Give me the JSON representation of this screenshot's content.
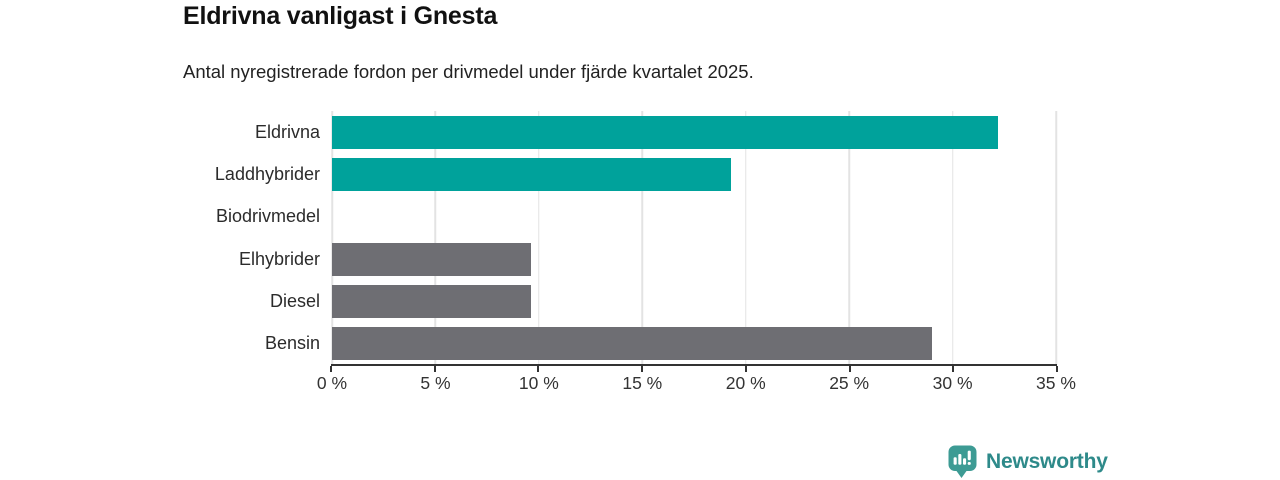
{
  "header": {
    "title": "Eldrivna vanligast i Gnesta",
    "subtitle": "Antal nyregistrerade fordon per drivmedel under fjärde kvartalet 2025."
  },
  "chart_data": {
    "type": "bar",
    "orientation": "horizontal",
    "title": "Eldrivna vanligast i Gnesta",
    "subtitle": "Antal nyregistrerade fordon per drivmedel under fjärde kvartalet 2025.",
    "categories": [
      "Eldrivna",
      "Laddhybrider",
      "Biodrivmedel",
      "Elhybrider",
      "Diesel",
      "Bensin"
    ],
    "values": [
      32.2,
      19.3,
      0,
      9.6,
      9.6,
      29
    ],
    "unit": "%",
    "xlim": [
      0,
      35
    ],
    "xticks": [
      0,
      5,
      10,
      15,
      20,
      25,
      30,
      35
    ],
    "xtick_labels": [
      "0 %",
      "5 %",
      "10 %",
      "15 %",
      "20 %",
      "25 %",
      "30 %",
      "35 %"
    ],
    "bar_color_roles": [
      "highlight",
      "highlight",
      "highlight",
      "default",
      "default",
      "default"
    ],
    "grid": true,
    "legend": false
  },
  "colors": {
    "highlight_bar": "#00a29b",
    "default_bar": "#6e6e73",
    "gridline": "#e3e3e3",
    "axis": "#333333",
    "title_text": "#111111",
    "subtitle_text": "#222222",
    "label_text": "#2b2b2b"
  },
  "branding": {
    "logo_text": "Newsworthy",
    "logo_icon": "bar-chart-speech-bubble-icon",
    "logo_text_color": "#2e8a8a",
    "logo_icon_color": "#3d9b94"
  }
}
